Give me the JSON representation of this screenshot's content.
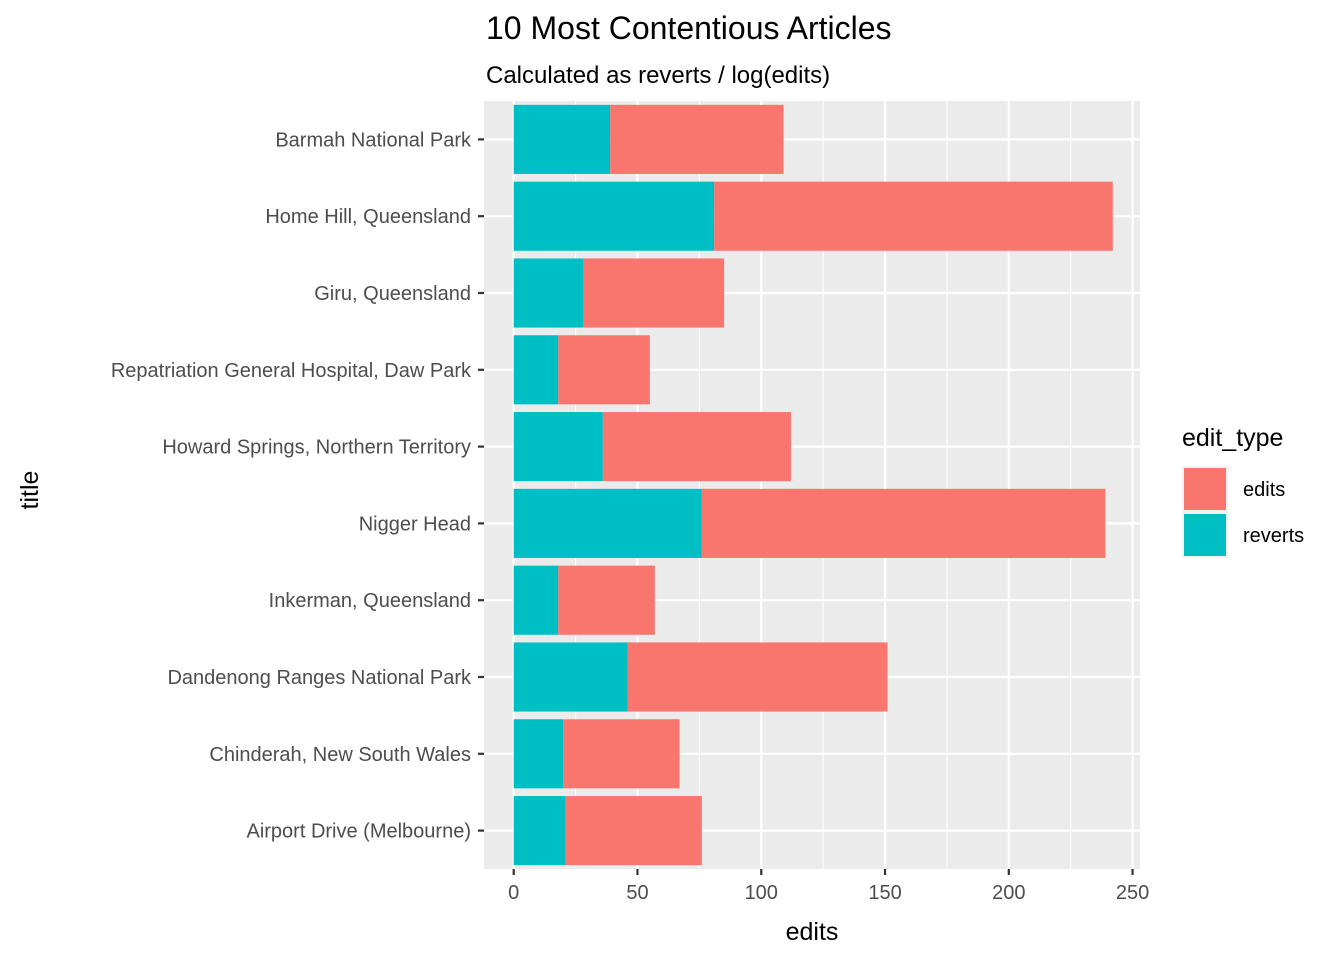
{
  "chart_data": {
    "type": "bar",
    "orientation": "horizontal",
    "stacked": true,
    "title": "10 Most Contentious Articles",
    "subtitle": "Calculated as reverts / log(edits)",
    "xlabel": "edits",
    "ylabel": "title",
    "xlim": [
      -12,
      253
    ],
    "xticks": [
      0,
      50,
      100,
      150,
      200,
      250
    ],
    "grid": true,
    "legend_position": "right",
    "legend_title": "edit_type",
    "categories": [
      "Barmah National Park",
      "Home Hill, Queensland",
      "Giru, Queensland",
      "Repatriation General Hospital, Daw Park",
      "Howard Springs, Northern Territory",
      "Nigger Head",
      "Inkerman, Queensland",
      "Dandenong Ranges National Park",
      "Chinderah, New South Wales",
      "Airport Drive (Melbourne)"
    ],
    "series": [
      {
        "name": "edits",
        "color": "#f8766d",
        "values": [
          70,
          161,
          57,
          37,
          76,
          163,
          39,
          105,
          47,
          55
        ]
      },
      {
        "name": "reverts",
        "color": "#00bfc4",
        "values": [
          39,
          81,
          28,
          18,
          36,
          76,
          18,
          46,
          20,
          21
        ]
      }
    ]
  }
}
